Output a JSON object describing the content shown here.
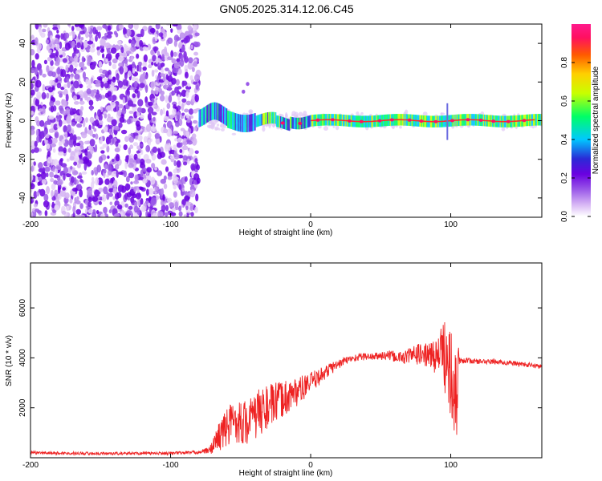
{
  "chart_data": [
    {
      "type": "heatmap",
      "title": "GN05.2025.314.12.06.C45",
      "xlabel": "Height of straight line (km)",
      "ylabel": "Frequency (Hz)",
      "xlim": [
        -200,
        165
      ],
      "ylim": [
        -50,
        50
      ],
      "xticks": [
        -200,
        -100,
        0,
        100
      ],
      "xtick_labels": [
        "-200",
        "-100",
        "0",
        "100"
      ],
      "yticks": [
        -40,
        -20,
        0,
        20,
        40
      ],
      "ytick_labels": [
        "-40",
        "-20",
        "0",
        "20",
        "40"
      ],
      "colorbar": {
        "label": "Normalized spectral amplitude",
        "ticks": [
          0.0,
          0.2,
          0.4,
          0.6,
          0.8
        ],
        "tick_labels": [
          "0.0",
          "0.2",
          "0.4",
          "0.6",
          "0.8"
        ],
        "range": [
          0,
          1
        ],
        "colors": [
          "#ffffff",
          "#d9b8f5",
          "#9a58e8",
          "#6a00e0",
          "#2a2ad6",
          "#00c8ff",
          "#00ff66",
          "#c8ff00",
          "#ffd000",
          "#ff5a00",
          "#ff1060",
          "#ff1a8c"
        ]
      },
      "features": {
        "noise_region_x": [
          -200,
          -80
        ],
        "signal_center_frequency": 0,
        "spike_x": 97
      }
    },
    {
      "type": "line",
      "xlabel": "Height of straight line (km)",
      "ylabel": "SNR (10 * v/v)",
      "xlim": [
        -200,
        165
      ],
      "ylim": [
        0,
        7800
      ],
      "xticks": [
        -200,
        -100,
        0,
        100
      ],
      "xtick_labels": [
        "-200",
        "-100",
        "0",
        "100"
      ],
      "yticks": [
        2000,
        4000,
        6000
      ],
      "ytick_labels": [
        "2000",
        "4000",
        "6000"
      ],
      "series": [
        {
          "name": "SNR",
          "color": "#ee2222",
          "x": [
            -200,
            -150,
            -100,
            -80,
            -72,
            -65,
            -55,
            -45,
            -35,
            -25,
            -15,
            -5,
            5,
            15,
            25,
            35,
            45,
            55,
            65,
            75,
            85,
            92,
            97,
            100,
            103,
            106,
            110,
            120,
            130,
            140,
            150,
            165
          ],
          "y": [
            200,
            170,
            180,
            220,
            300,
            900,
            1500,
            1400,
            1900,
            2200,
            2500,
            2800,
            3200,
            3600,
            3900,
            4050,
            4050,
            4100,
            4000,
            4150,
            4100,
            4100,
            4200,
            4100,
            3900,
            3900,
            3900,
            3850,
            3850,
            3800,
            3750,
            3650
          ],
          "noise_amplitude": [
            60,
            60,
            60,
            70,
            150,
            650,
            900,
            900,
            1000,
            800,
            700,
            500,
            350,
            250,
            150,
            150,
            150,
            200,
            250,
            400,
            500,
            900,
            1800,
            2500,
            3000,
            150,
            120,
            100,
            100,
            100,
            100,
            100
          ]
        }
      ]
    }
  ]
}
